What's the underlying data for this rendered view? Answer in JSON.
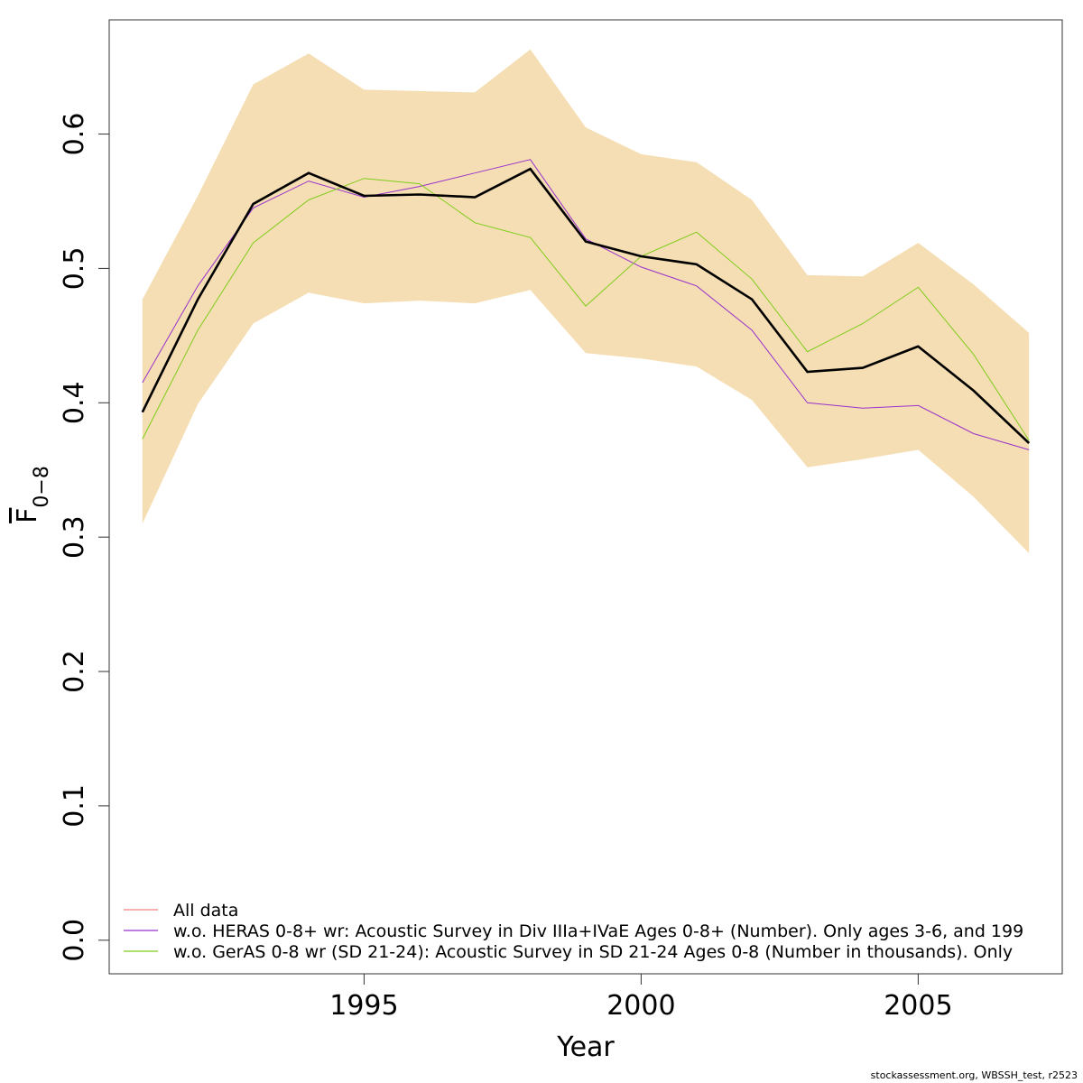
{
  "chart_data": {
    "type": "line",
    "xlabel": "Year",
    "ylabel": {
      "base": "F",
      "sub": "0−8"
    },
    "xlim": [
      1990.4,
      2007.6
    ],
    "ylim": [
      -0.025,
      0.685
    ],
    "xticks": [
      1995,
      2000,
      2005
    ],
    "yticks": [
      0.0,
      0.1,
      0.2,
      0.3,
      0.4,
      0.5,
      0.6
    ],
    "ytick_labels": [
      "0.0",
      "0.1",
      "0.2",
      "0.3",
      "0.4",
      "0.5",
      "0.6"
    ],
    "x": [
      1991,
      1992,
      1993,
      1994,
      1995,
      1996,
      1997,
      1998,
      1999,
      2000,
      2001,
      2002,
      2003,
      2004,
      2005,
      2006,
      2007
    ],
    "band": {
      "color": "#F5DEB3",
      "upper": [
        0.477,
        0.554,
        0.637,
        0.66,
        0.633,
        0.632,
        0.631,
        0.663,
        0.605,
        0.585,
        0.579,
        0.551,
        0.495,
        0.494,
        0.519,
        0.488,
        0.452
      ],
      "lower": [
        0.31,
        0.399,
        0.459,
        0.482,
        0.474,
        0.476,
        0.474,
        0.484,
        0.437,
        0.433,
        0.427,
        0.402,
        0.352,
        0.358,
        0.365,
        0.33,
        0.288
      ]
    },
    "main": {
      "color": "#000000",
      "values": [
        0.393,
        0.477,
        0.548,
        0.571,
        0.554,
        0.555,
        0.553,
        0.574,
        0.52,
        0.509,
        0.503,
        0.477,
        0.423,
        0.426,
        0.442,
        0.409,
        0.37
      ]
    },
    "series": [
      {
        "name": "All data",
        "color": "#F08080",
        "values": [
          0.393,
          0.477,
          0.548,
          0.571,
          0.554,
          0.555,
          0.553,
          0.574,
          0.52,
          0.509,
          0.503,
          0.477,
          0.423,
          0.426,
          0.442,
          0.409,
          0.37
        ]
      },
      {
        "name": "w.o. HERAS 0-8+ wr: Acoustic Survey in Div IIIa+IVaE Ages 0-8+ (Number). Only ages 3-6, and 199",
        "color": "#9932CC",
        "values": [
          0.415,
          0.487,
          0.545,
          0.565,
          0.553,
          0.561,
          0.571,
          0.581,
          0.522,
          0.501,
          0.487,
          0.454,
          0.4,
          0.396,
          0.398,
          0.377,
          0.365
        ]
      },
      {
        "name": "w.o. GerAS 0-8 wr (SD 21-24): Acoustic Survey in SD 21-24 Ages 0-8 (Number in thousands). Only",
        "color": "#7FCC1A",
        "values": [
          0.373,
          0.454,
          0.519,
          0.551,
          0.567,
          0.563,
          0.534,
          0.523,
          0.472,
          0.509,
          0.527,
          0.492,
          0.438,
          0.459,
          0.486,
          0.436,
          0.372
        ]
      }
    ],
    "legend": "bottom-left",
    "grid": false
  },
  "footer": {
    "text": "stockassessment.org, WBSSH_test, r2523"
  }
}
